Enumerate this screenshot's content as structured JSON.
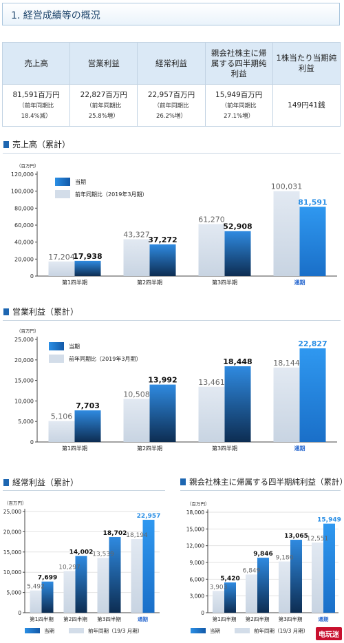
{
  "header": {
    "title": "1. 経営成績等の概況"
  },
  "summary": {
    "headers": [
      "売上高",
      "営業利益",
      "経常利益",
      "親会社株主に帰属する四半期純利益",
      "1株当たり当期純利益"
    ],
    "cells": [
      {
        "value": "81,591百万円",
        "sub1": "（前年同期比",
        "sub2": "18.4%減）"
      },
      {
        "value": "22,827百万円",
        "sub1": "（前年同期比",
        "sub2": "25.8%増）"
      },
      {
        "value": "22,957百万円",
        "sub1": "（前年同期比",
        "sub2": "26.2%増）"
      },
      {
        "value": "15,949百万円",
        "sub1": "（前年同期比",
        "sub2": "27.1%増）"
      },
      {
        "value": "149円41銭",
        "sub1": "",
        "sub2": ""
      }
    ]
  },
  "sections": {
    "sales": "売上高（累計）",
    "operating": "営業利益（累計）",
    "ordinary": "経常利益（累計）",
    "net": "親会社株主に帰属する四半期純利益（累計）"
  },
  "colors": {
    "current": "#1f7fd6",
    "current_dark": "#0c2b4f",
    "prior": "#d3dde9",
    "accent": "#2b8fe5"
  },
  "legend": {
    "current": "当期",
    "prior_long": "前年同期比（2019年3月期）",
    "prior_short": "前年同期（19/3 月期）"
  },
  "watermark": "电玩迷",
  "chart_data": [
    {
      "id": "sales",
      "type": "bar",
      "unit": "（百万円）",
      "categories": [
        "第1四半期",
        "第2四半期",
        "第3四半期",
        "通期"
      ],
      "series": [
        {
          "name": "前年同期比（2019年3月期）",
          "values": [
            17204,
            43327,
            61270,
            100031
          ]
        },
        {
          "name": "当期",
          "values": [
            17938,
            37272,
            52908,
            81591
          ]
        }
      ],
      "ylim": [
        0,
        120000
      ],
      "yticks": [
        0,
        20000,
        40000,
        60000,
        80000,
        100000,
        120000
      ],
      "legend": "top-left",
      "grid": false
    },
    {
      "id": "operating",
      "type": "bar",
      "unit": "（百万円）",
      "categories": [
        "第1四半期",
        "第2四半期",
        "第3四半期",
        "通期"
      ],
      "series": [
        {
          "name": "前年同期比（2019年3月期）",
          "values": [
            5106,
            10508,
            13461,
            18144
          ]
        },
        {
          "name": "当期",
          "values": [
            7703,
            13992,
            18448,
            22827
          ]
        }
      ],
      "ylim": [
        0,
        25000
      ],
      "yticks": [
        0,
        5000,
        10000,
        15000,
        20000,
        25000
      ],
      "legend": "top-left",
      "grid": false
    },
    {
      "id": "ordinary",
      "type": "bar",
      "unit": "（百万円）",
      "categories": [
        "第1四半期",
        "第2四半期",
        "第3四半期",
        "通期"
      ],
      "series": [
        {
          "name": "前年同期（19/3 月期）",
          "values": [
            5492,
            10297,
            13539,
            18194
          ]
        },
        {
          "name": "当期",
          "values": [
            7699,
            14002,
            18702,
            22957
          ]
        }
      ],
      "ylim": [
        0,
        25000
      ],
      "yticks": [
        0,
        5000,
        10000,
        15000,
        20000,
        25000
      ],
      "legend": "bottom",
      "grid": true
    },
    {
      "id": "net",
      "type": "bar",
      "unit": "（百万円）",
      "categories": [
        "第1四半期",
        "第2四半期",
        "第3四半期",
        "通期"
      ],
      "series": [
        {
          "name": "前年同期（19/3 月期）",
          "values": [
            3903,
            6849,
            9180,
            12551
          ]
        },
        {
          "name": "当期",
          "values": [
            5420,
            9846,
            13065,
            15949
          ]
        }
      ],
      "ylim": [
        0,
        18000
      ],
      "yticks": [
        0,
        3000,
        6000,
        9000,
        12000,
        15000,
        18000
      ],
      "legend": "bottom",
      "grid": true
    }
  ]
}
